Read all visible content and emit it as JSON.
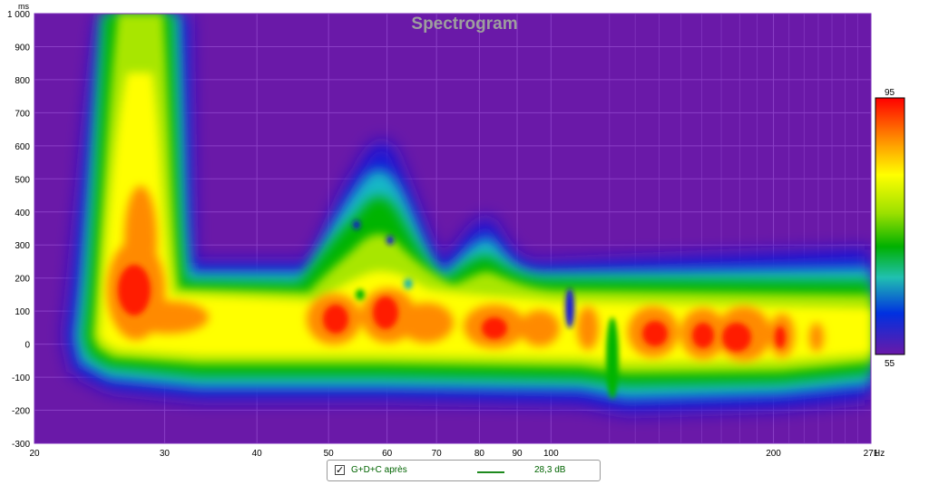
{
  "chart_data": {
    "type": "heatmap",
    "title": "Spectrogram",
    "y_unit": "ms",
    "x_unit": "Hz",
    "x_scale": "log",
    "xlim": [
      20,
      271
    ],
    "ylim": [
      -300,
      1000
    ],
    "x_ticks": [
      "20",
      "30",
      "40",
      "50",
      "60",
      "70",
      "80",
      "90",
      "100",
      "200",
      "271"
    ],
    "x_tick_values": [
      20,
      30,
      40,
      50,
      60,
      70,
      80,
      90,
      100,
      200,
      271
    ],
    "y_ticks": [
      "1 000",
      "900",
      "800",
      "700",
      "600",
      "500",
      "400",
      "300",
      "200",
      "100",
      "0",
      "-100",
      "-200",
      "-300"
    ],
    "y_tick_values": [
      1000,
      900,
      800,
      700,
      600,
      500,
      400,
      300,
      200,
      100,
      0,
      -100,
      -200,
      -300
    ],
    "colorbar": {
      "max_label": "95",
      "min_label": "55",
      "range": [
        55,
        95
      ]
    },
    "colors": {
      "background": "#6a19a8",
      "grid": "#8a3fc6"
    },
    "features": [
      {
        "name": "low-frequency mode",
        "freq_hz": 28,
        "peak_ms": 170,
        "decay_to_ms": 1000,
        "level_db": 90
      },
      {
        "name": "main band",
        "freq_range_hz": [
          24,
          271
        ],
        "time_range_ms": [
          -150,
          180
        ],
        "level_db": 80
      },
      {
        "name": "hot spot",
        "freq_hz": 52,
        "time_ms": 60,
        "level_db": 92
      },
      {
        "name": "hot spot",
        "freq_hz": 60,
        "time_ms": 60,
        "level_db": 92
      },
      {
        "name": "hot spot",
        "freq_hz": 85,
        "time_ms": 40,
        "level_db": 90
      },
      {
        "name": "hot spot",
        "freq_hz": 125,
        "time_ms": 30,
        "level_db": 92
      },
      {
        "name": "hot spot",
        "freq_hz": 150,
        "time_ms": 30,
        "level_db": 91
      },
      {
        "name": "hot spot",
        "freq_hz": 170,
        "time_ms": 20,
        "level_db": 93
      },
      {
        "name": "hot spot",
        "freq_hz": 185,
        "time_ms": 20,
        "level_db": 93
      },
      {
        "name": "resonance ridge",
        "freq_hz": 60,
        "peak_ms": 640,
        "level_db": 62
      },
      {
        "name": "resonance ridge",
        "freq_hz": 83,
        "peak_ms": 360,
        "level_db": 62
      }
    ],
    "legend": {
      "checked": true,
      "name": "G+D+C après",
      "color": "#1e8a1e",
      "value": "28,3 dB"
    }
  }
}
